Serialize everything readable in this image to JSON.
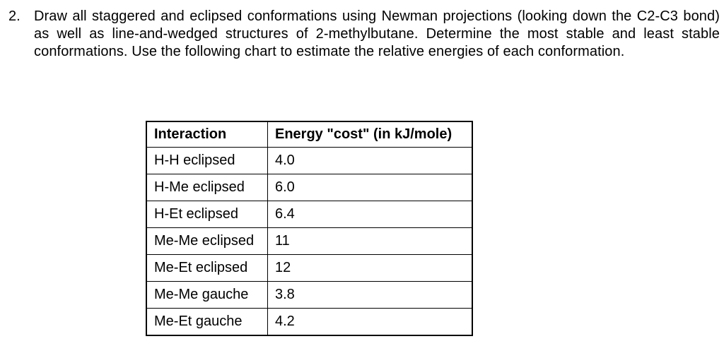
{
  "question": {
    "number": "2.",
    "text": "Draw all staggered and eclipsed conformations using Newman projections (looking down the C2-C3 bond) as well as line-and-wedged structures of 2-methylbutane. Determine the most stable and least stable conformations. Use the following chart to estimate the relative energies of each conformation."
  },
  "table": {
    "headers": [
      "Interaction",
      "Energy \"cost\" (in kJ/mole)"
    ],
    "rows": [
      [
        "H-H eclipsed",
        "4.0"
      ],
      [
        "H-Me eclipsed",
        "6.0"
      ],
      [
        "H-Et eclipsed",
        "6.4"
      ],
      [
        "Me-Me eclipsed",
        "11"
      ],
      [
        "Me-Et eclipsed",
        "12"
      ],
      [
        "Me-Me gauche",
        "3.8"
      ],
      [
        "Me-Et gauche",
        "4.2"
      ]
    ]
  }
}
